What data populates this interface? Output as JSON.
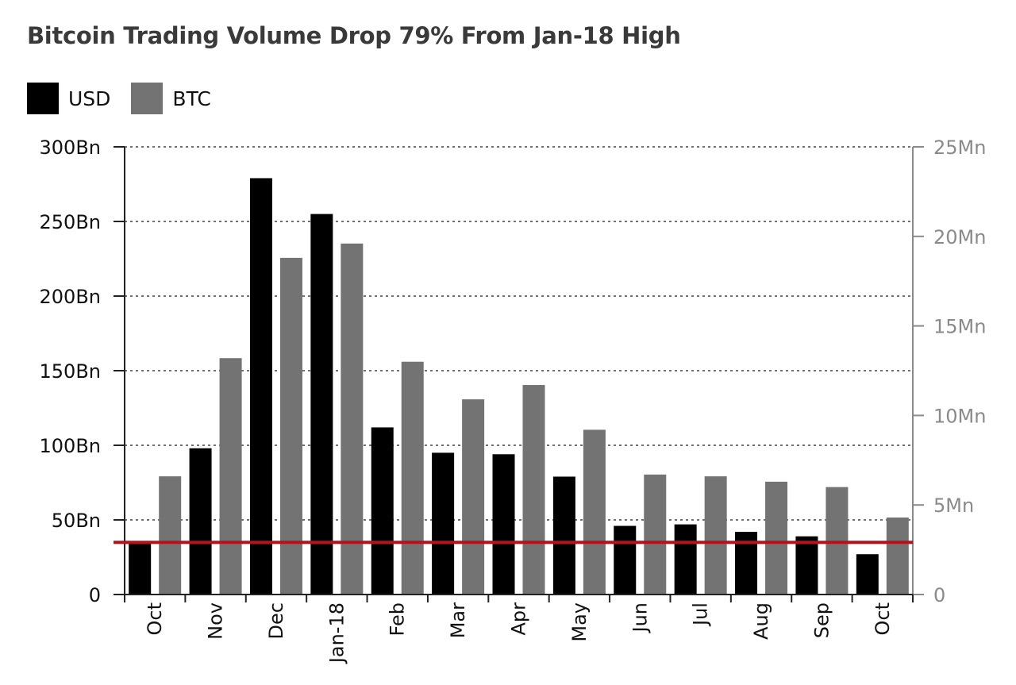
{
  "chart_data": {
    "type": "bar",
    "title": "Bitcoin Trading Volume Drop 79% From Jan-18 High",
    "categories": [
      "Oct",
      "Nov",
      "Dec",
      "Jan-18",
      "Feb",
      "Mar",
      "Apr",
      "May",
      "Jun",
      "Jul",
      "Aug",
      "Sep",
      "Oct"
    ],
    "series": [
      {
        "name": "USD",
        "axis": "left",
        "color": "#000000",
        "values": [
          35,
          98,
          279,
          255,
          112,
          95,
          94,
          79,
          46,
          47,
          42,
          39,
          27
        ]
      },
      {
        "name": "BTC",
        "axis": "right",
        "color": "#737373",
        "values": [
          6.6,
          13.2,
          18.8,
          19.6,
          13.0,
          10.9,
          11.7,
          9.2,
          6.7,
          6.6,
          6.3,
          6.0,
          4.3
        ]
      }
    ],
    "y_left": {
      "ylim": [
        0,
        300
      ],
      "ticks": [
        0,
        50,
        100,
        150,
        200,
        250,
        300
      ],
      "tick_labels": [
        "0",
        "50Bn",
        "100Bn",
        "150Bn",
        "200Bn",
        "250Bn",
        "300Bn"
      ]
    },
    "y_right": {
      "ylim": [
        0,
        25
      ],
      "ticks": [
        0,
        5,
        10,
        15,
        20,
        25
      ],
      "tick_labels": [
        "0",
        "5Mn",
        "10Mn",
        "15Mn",
        "20Mn",
        "25Mn"
      ]
    },
    "reference_line": {
      "axis": "left",
      "value": 35,
      "color": "#b5121b"
    },
    "grid": "horizontal-dotted",
    "legend_position": "top-left"
  }
}
